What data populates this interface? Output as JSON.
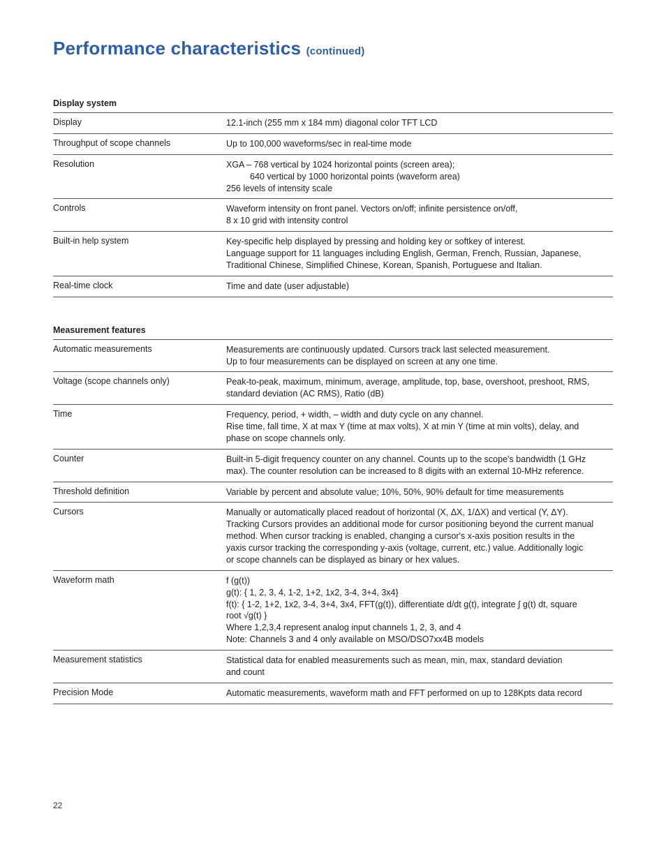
{
  "title_main": "Performance characteristics ",
  "title_cont": "(continued)",
  "page_number": "22",
  "sections": [
    {
      "heading": "Display system",
      "rows": [
        {
          "label": "Display",
          "lines": [
            "12.1-inch (255 mm x 184 mm) diagonal color TFT LCD"
          ]
        },
        {
          "label": "Throughput of scope channels",
          "lines": [
            "Up to 100,000 waveforms/sec in real-time mode"
          ]
        },
        {
          "label": "Resolution",
          "lines": [
            "XGA – 768 vertical by 1024 horizontal points (screen area);",
            "__INDENT__640 vertical by 1000 horizontal points (waveform area)",
            "256 levels of intensity scale"
          ]
        },
        {
          "label": "Controls",
          "lines": [
            "Waveform intensity on front panel. Vectors on/off; infinite persistence on/off,",
            "8 x 10 grid with intensity control"
          ]
        },
        {
          "label": "Built-in help system",
          "lines": [
            "Key-specific help displayed by pressing and holding key or softkey of interest.",
            "Language support for 11 languages including English, German, French, Russian, Japanese,",
            "Traditional Chinese, Simplified Chinese, Korean, Spanish, Portuguese and Italian."
          ]
        },
        {
          "label": "Real-time clock",
          "lines": [
            "Time and date (user adjustable)"
          ]
        }
      ]
    },
    {
      "heading": "Measurement features",
      "rows": [
        {
          "label": "Automatic measurements",
          "lines": [
            "Measurements are continuously updated. Cursors track last selected measurement.",
            "Up to four measurements can be displayed on screen at any one time."
          ]
        },
        {
          "label": "Voltage (scope channels only)",
          "lines": [
            "Peak-to-peak, maximum, minimum, average, amplitude, top, base, overshoot, preshoot, RMS,",
            "standard deviation (AC RMS), Ratio (dB)"
          ]
        },
        {
          "label": "Time",
          "lines": [
            "Frequency, period, + width, – width and duty cycle on any channel.",
            "Rise time, fall time, X at max Y (time at max volts), X at min Y (time at min volts), delay, and",
            "phase on scope channels only."
          ]
        },
        {
          "label": "Counter",
          "lines": [
            "Built-in 5-digit frequency counter on any channel. Counts up to the scope's bandwidth (1 GHz",
            "max). The counter resolution can be increased to 8 digits with an external 10-MHz reference."
          ]
        },
        {
          "label": "Threshold definition",
          "lines": [
            "Variable by percent and absolute value; 10%, 50%, 90% default for time measurements"
          ]
        },
        {
          "label": "Cursors",
          "lines": [
            "Manually or automatically placed readout of horizontal (X, ΔX, 1/ΔX) and vertical (Y, ΔY).",
            "Tracking Cursors provides an additional mode for cursor positioning beyond the current manual",
            "method. When cursor tracking is enabled, changing a cursor's x-axis position results in the",
            "yaxis cursor tracking the corresponding y-axis (voltage, current, etc.) value. Additionally logic",
            "or scope channels can be displayed as binary or hex values."
          ]
        },
        {
          "label": "Waveform math",
          "lines": [
            "f (g(t))",
            "g(t):  { 1, 2, 3, 4, 1-2, 1+2, 1x2, 3-4, 3+4, 3x4}",
            "f(t):  { 1-2, 1+2, 1x2, 3-4, 3+4, 3x4, FFT(g(t)), differentiate d/dt g(t), integrate ∫ g(t) dt, square",
            "root √g(t)  }",
            "Where 1,2,3,4 represent analog input channels 1, 2, 3, and 4",
            "Note: Channels 3 and 4 only available on MSO/DSO7xx4B models"
          ]
        },
        {
          "label": "Measurement statistics",
          "lines": [
            "Statistical data for enabled measurements such as mean, min, max, standard deviation",
            "and count"
          ]
        },
        {
          "label": "Precision Mode",
          "lines": [
            "Automatic measurements, waveform math and FFT performed on up to 128Kpts data record"
          ]
        }
      ]
    }
  ]
}
